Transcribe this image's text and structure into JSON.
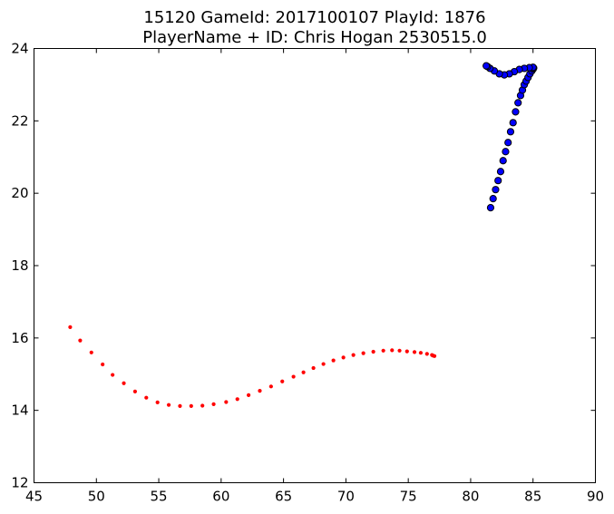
{
  "chart_data": {
    "type": "scatter",
    "title": "15120 GameId: 2017100107 PlayId: 1876",
    "subtitle": "PlayerName + ID: Chris Hogan 2530515.0",
    "xlabel": "",
    "ylabel": "",
    "xlim": [
      45,
      90
    ],
    "ylim": [
      12,
      24
    ],
    "xticks": [
      45,
      50,
      55,
      60,
      65,
      70,
      75,
      80,
      85,
      90
    ],
    "yticks": [
      12,
      14,
      16,
      18,
      20,
      22,
      24
    ],
    "grid": false,
    "series": [
      {
        "color": "#0000ff",
        "marker": "circle-large",
        "points": [
          [
            81.6,
            19.6
          ],
          [
            81.8,
            19.85
          ],
          [
            82.0,
            20.1
          ],
          [
            82.2,
            20.35
          ],
          [
            82.4,
            20.6
          ],
          [
            82.6,
            20.9
          ],
          [
            82.8,
            21.15
          ],
          [
            83.0,
            21.4
          ],
          [
            83.2,
            21.7
          ],
          [
            83.4,
            21.95
          ],
          [
            83.6,
            22.25
          ],
          [
            83.8,
            22.5
          ],
          [
            84.0,
            22.7
          ],
          [
            84.15,
            22.85
          ],
          [
            84.3,
            23.0
          ],
          [
            84.45,
            23.1
          ],
          [
            84.6,
            23.2
          ],
          [
            84.75,
            23.3
          ],
          [
            84.9,
            23.38
          ],
          [
            85.0,
            23.43
          ],
          [
            85.05,
            23.46
          ],
          [
            85.0,
            23.48
          ],
          [
            84.7,
            23.47
          ],
          [
            84.3,
            23.45
          ],
          [
            83.9,
            23.42
          ],
          [
            83.5,
            23.36
          ],
          [
            83.1,
            23.3
          ],
          [
            82.7,
            23.27
          ],
          [
            82.3,
            23.3
          ],
          [
            81.9,
            23.38
          ],
          [
            81.55,
            23.45
          ],
          [
            81.35,
            23.5
          ],
          [
            81.25,
            23.52
          ]
        ]
      },
      {
        "color": "#ff0000",
        "marker": "circle-small",
        "points": [
          [
            47.9,
            16.3
          ],
          [
            48.7,
            15.93
          ],
          [
            49.6,
            15.6
          ],
          [
            50.5,
            15.27
          ],
          [
            51.3,
            14.98
          ],
          [
            52.2,
            14.75
          ],
          [
            53.1,
            14.52
          ],
          [
            54.0,
            14.35
          ],
          [
            54.9,
            14.22
          ],
          [
            55.8,
            14.15
          ],
          [
            56.7,
            14.12
          ],
          [
            57.6,
            14.12
          ],
          [
            58.5,
            14.13
          ],
          [
            59.4,
            14.17
          ],
          [
            60.4,
            14.23
          ],
          [
            61.3,
            14.31
          ],
          [
            62.2,
            14.42
          ],
          [
            63.1,
            14.54
          ],
          [
            64.0,
            14.66
          ],
          [
            64.9,
            14.8
          ],
          [
            65.8,
            14.93
          ],
          [
            66.6,
            15.05
          ],
          [
            67.4,
            15.17
          ],
          [
            68.2,
            15.28
          ],
          [
            69.0,
            15.38
          ],
          [
            69.8,
            15.46
          ],
          [
            70.6,
            15.53
          ],
          [
            71.4,
            15.58
          ],
          [
            72.2,
            15.62
          ],
          [
            73.0,
            15.65
          ],
          [
            73.7,
            15.66
          ],
          [
            74.3,
            15.65
          ],
          [
            74.9,
            15.63
          ],
          [
            75.5,
            15.61
          ],
          [
            76.0,
            15.59
          ],
          [
            76.5,
            15.56
          ],
          [
            76.9,
            15.53
          ],
          [
            77.0,
            15.51
          ],
          [
            77.1,
            15.5
          ]
        ]
      }
    ]
  }
}
